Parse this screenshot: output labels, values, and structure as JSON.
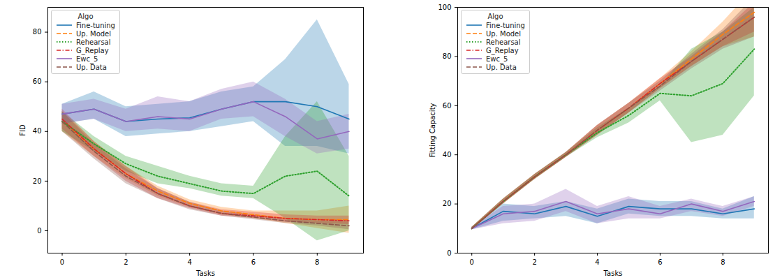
{
  "chart_data": [
    {
      "type": "line",
      "xlabel": "Tasks",
      "ylabel": "FID",
      "x": [
        0,
        1,
        2,
        3,
        4,
        5,
        6,
        7,
        8,
        9
      ],
      "xlim": [
        -0.45,
        9.45
      ],
      "ylim": [
        -9,
        90
      ],
      "xticks": [
        0,
        2,
        4,
        6,
        8
      ],
      "yticks": [
        0,
        20,
        40,
        60,
        80
      ],
      "grid": false,
      "legend": "upper left",
      "legend_title": "Algo",
      "series": [
        {
          "name": "Fine-tuning",
          "color": "#1f77b4",
          "line_style": "solid",
          "values": [
            47,
            49,
            44,
            45,
            45.5,
            49,
            52,
            52,
            50,
            45
          ],
          "lower": [
            43,
            45,
            38,
            39,
            40,
            42,
            44,
            34,
            34,
            31
          ],
          "upper": [
            51,
            56,
            50,
            51,
            52,
            56,
            58,
            69,
            85,
            59
          ]
        },
        {
          "name": "Up. Model",
          "color": "#ff7f0e",
          "line_style": "dashed",
          "values": [
            44,
            33,
            23,
            16,
            11,
            8,
            6.5,
            5,
            4.5,
            4.5
          ],
          "lower": [
            40,
            30,
            21,
            14,
            9.5,
            6.5,
            5,
            3,
            1,
            -1
          ],
          "upper": [
            48,
            36,
            26,
            18,
            12.5,
            9.5,
            8,
            8,
            8,
            10
          ]
        },
        {
          "name": "Rehearsal",
          "color": "#2ca02c",
          "line_style": "dotted",
          "values": [
            44,
            35,
            27,
            22,
            19,
            16,
            15,
            22,
            24,
            14
          ],
          "lower": [
            40,
            32,
            24,
            19,
            17,
            14,
            13,
            5,
            -4,
            0
          ],
          "upper": [
            48,
            38,
            30,
            26,
            22,
            19,
            18,
            38,
            52,
            30
          ]
        },
        {
          "name": "G_Replay",
          "color": "#d62728",
          "line_style": "dashdot",
          "values": [
            45,
            33,
            23,
            15,
            10,
            7,
            6,
            5,
            4.5,
            4
          ],
          "lower": [
            41,
            30,
            20,
            13,
            9,
            6,
            5,
            3.5,
            3,
            2.5
          ],
          "upper": [
            49,
            36,
            26,
            17,
            11.5,
            8.5,
            7.5,
            6.5,
            6,
            6
          ]
        },
        {
          "name": "Ewc_5",
          "color": "#9467bd",
          "line_style": "solid",
          "values": [
            47,
            49,
            44,
            46,
            45,
            49,
            52,
            46,
            37,
            40
          ],
          "lower": [
            43,
            45,
            40,
            41,
            40,
            45,
            46,
            38,
            31,
            33
          ],
          "upper": [
            51,
            53,
            49,
            54,
            52,
            57,
            60,
            53,
            44,
            47
          ]
        },
        {
          "name": "Up. Data",
          "color": "#8c564b",
          "line_style": "dashed",
          "values": [
            44,
            32,
            22,
            15,
            10,
            7,
            5.5,
            4,
            3,
            2
          ],
          "lower": [
            40,
            29,
            19,
            13,
            8.5,
            6,
            4.5,
            3,
            2,
            0.5
          ],
          "upper": [
            48,
            35,
            25,
            17,
            11.5,
            8,
            6.5,
            5,
            4,
            3.5
          ]
        }
      ]
    },
    {
      "type": "line",
      "xlabel": "Tasks",
      "ylabel": "Fitting Capacity",
      "x": [
        0,
        1,
        2,
        3,
        4,
        5,
        6,
        7,
        8,
        9
      ],
      "xlim": [
        -0.45,
        9.45
      ],
      "ylim": [
        0,
        100
      ],
      "xticks": [
        0,
        2,
        4,
        6,
        8
      ],
      "yticks": [
        0,
        20,
        40,
        60,
        80,
        100
      ],
      "grid": false,
      "legend": "upper left",
      "legend_title": "Algo",
      "series": [
        {
          "name": "Fine-tuning",
          "color": "#1f77b4",
          "line_style": "solid",
          "values": [
            10,
            17,
            16,
            19,
            15,
            19,
            18,
            18,
            16,
            18
          ],
          "lower": [
            9.5,
            13,
            14,
            15,
            12,
            16,
            15,
            15,
            14,
            14
          ],
          "upper": [
            10.5,
            20,
            19,
            21,
            18,
            22,
            21,
            21,
            18,
            23
          ]
        },
        {
          "name": "Up. Model",
          "color": "#ff7f0e",
          "line_style": "dashed",
          "values": [
            10,
            21,
            31,
            40,
            50,
            59,
            69,
            79,
            89,
            98
          ],
          "lower": [
            9.5,
            20,
            30,
            39,
            48,
            57,
            67,
            76,
            84,
            88
          ],
          "upper": [
            10.5,
            22,
            32,
            41,
            52,
            61,
            71,
            82,
            94,
            108
          ]
        },
        {
          "name": "Rehearsal",
          "color": "#2ca02c",
          "line_style": "dotted",
          "values": [
            10,
            21,
            31,
            40,
            49,
            56,
            65,
            64,
            69,
            83
          ],
          "lower": [
            9.5,
            20,
            30,
            39,
            47,
            53,
            62,
            45,
            48,
            64
          ],
          "upper": [
            10.5,
            22,
            32,
            41,
            51,
            59,
            68,
            83,
            90,
            100
          ]
        },
        {
          "name": "G_Replay",
          "color": "#d62728",
          "line_style": "dashdot",
          "values": [
            10,
            21,
            31,
            40,
            50,
            59,
            69,
            78,
            87,
            96
          ],
          "lower": [
            9.5,
            20,
            30,
            39,
            48,
            57,
            67,
            76,
            84,
            90
          ],
          "upper": [
            10.5,
            22,
            32,
            41,
            52,
            61,
            71,
            80,
            90,
            102
          ]
        },
        {
          "name": "Ewc_5",
          "color": "#9467bd",
          "line_style": "solid",
          "values": [
            10,
            16,
            17,
            21,
            16,
            18,
            16,
            20,
            17,
            21
          ],
          "lower": [
            9.5,
            12,
            13,
            17,
            12,
            14,
            14,
            17,
            15,
            19
          ],
          "upper": [
            10.5,
            19,
            20,
            26,
            19,
            23,
            19,
            22,
            19,
            23
          ]
        },
        {
          "name": "Up. Data",
          "color": "#8c564b",
          "line_style": "dashed",
          "values": [
            10,
            21,
            31,
            40,
            50,
            59,
            68,
            78,
            87,
            96
          ],
          "lower": [
            9.5,
            20,
            30,
            39,
            48,
            57,
            66,
            75,
            83,
            88
          ],
          "upper": [
            10.5,
            22,
            32,
            41,
            52,
            61,
            70,
            81,
            91,
            104
          ]
        }
      ]
    }
  ]
}
